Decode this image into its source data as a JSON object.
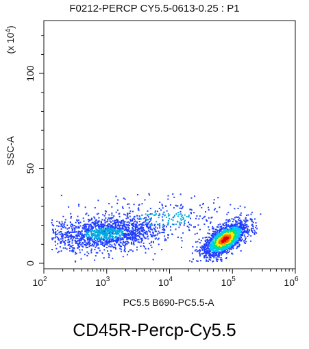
{
  "header": {
    "title": "F0212-PERCP CY5.5-0613-0.25 : P1"
  },
  "caption": {
    "text": "CD45R-Percp-Cy5.5"
  },
  "chart_data": {
    "type": "scatter",
    "title": "F0212-PERCP CY5.5-0613-0.25 : P1",
    "xlabel": "PC5.5 B690-PC5.5-A",
    "ylabel": "SSC-A",
    "y_multiplier_label": "(x 10",
    "y_multiplier_exp": "4",
    "x_scale": "log",
    "xlim": [
      100,
      1000000
    ],
    "ylim": [
      0,
      130
    ],
    "x_ticks": [
      {
        "value": 100,
        "base": "10",
        "exp": "2"
      },
      {
        "value": 1000,
        "base": "10",
        "exp": "3"
      },
      {
        "value": 10000,
        "base": "10",
        "exp": "4"
      },
      {
        "value": 100000,
        "base": "10",
        "exp": "5"
      },
      {
        "value": 1000000,
        "base": "10",
        "exp": "6"
      }
    ],
    "y_ticks": [
      {
        "value": 0,
        "label": "0"
      },
      {
        "value": 50,
        "label": "50"
      },
      {
        "value": 100,
        "label": "100"
      }
    ],
    "grid": false,
    "populations": [
      {
        "x_center": 900,
        "y_center": 16,
        "log_spread_x": 0.45,
        "spread_y": 5.5,
        "count": 1500,
        "color": "#1f3cff"
      },
      {
        "x_center": 75000,
        "y_center": 13,
        "log_spread_x": 0.17,
        "spread_y": 4.5,
        "count": 1700,
        "color": "#00c853",
        "density_colors": [
          "#1f3cff",
          "#00c8ff",
          "#00e676",
          "#ffeb00",
          "#ff6d00",
          "#e00000"
        ]
      },
      {
        "x_center": 8000,
        "y_center": 24,
        "log_spread_x": 0.6,
        "spread_y": 7,
        "count": 280,
        "color": "#1f3cff"
      }
    ]
  }
}
